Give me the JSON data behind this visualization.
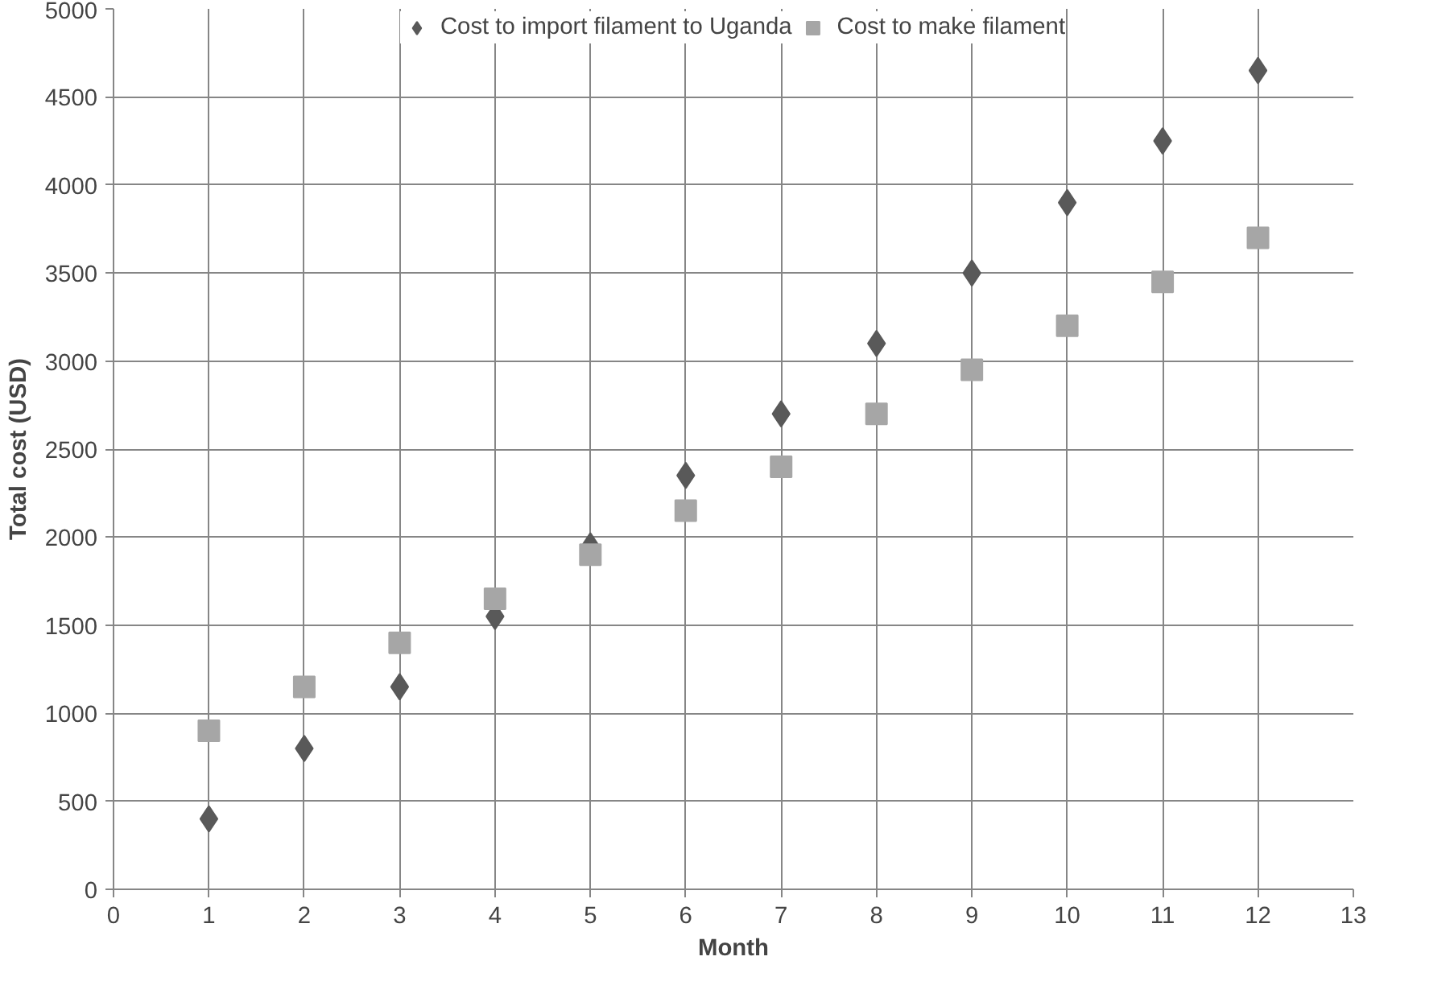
{
  "chart_data": {
    "type": "scatter",
    "xlabel": "Month",
    "ylabel": "Total cost (USD)",
    "x": [
      1,
      2,
      3,
      4,
      5,
      6,
      7,
      8,
      9,
      10,
      11,
      12
    ],
    "series": [
      {
        "name": "Cost to import filament to Uganda",
        "color": "#595959",
        "marker": "diamond",
        "values": [
          400,
          800,
          1150,
          1550,
          1950,
          2350,
          2700,
          3100,
          3500,
          3900,
          4250,
          4650
        ]
      },
      {
        "name": "Cost to make filament",
        "color": "#a6a6a6",
        "marker": "square",
        "values": [
          900,
          1150,
          1400,
          1650,
          1900,
          2150,
          2400,
          2700,
          2950,
          3200,
          3450,
          3700
        ]
      }
    ],
    "xlim": [
      0,
      13
    ],
    "xticks": [
      0,
      1,
      2,
      3,
      4,
      5,
      6,
      7,
      8,
      9,
      10,
      11,
      12,
      13
    ],
    "ylim": [
      0,
      5000
    ],
    "yticks": [
      0,
      500,
      1000,
      1500,
      2000,
      2500,
      3000,
      3500,
      4000,
      4500,
      5000
    ],
    "grid": true,
    "legend": "top"
  }
}
